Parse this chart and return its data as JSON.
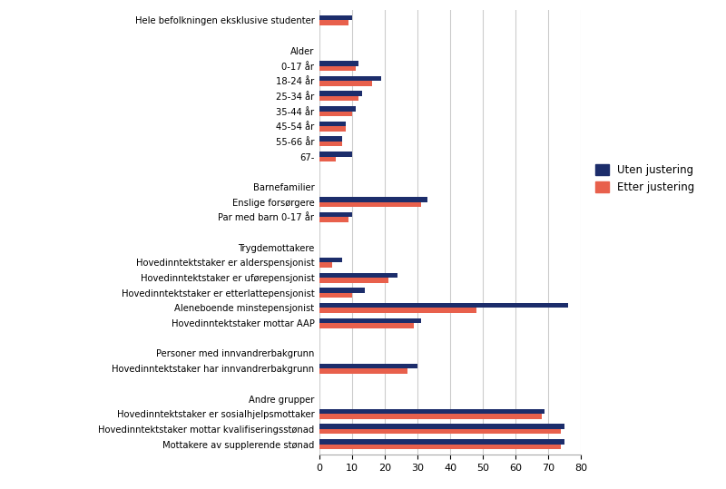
{
  "categories": [
    "Hele befolkningen eksklusive studenter",
    "",
    "Alder",
    "0-17 år",
    "18-24 år",
    "25-34 år",
    "35-44 år",
    "45-54 år",
    "55-66 år",
    "67-",
    "",
    "Barnefamilier",
    "Enslige forsørgere",
    "Par med barn 0-17 år",
    "",
    "Trygdemottakere",
    "Hovedinntektstaker er alderspensjonist",
    "Hovedinntektstaker er uførepensjonist",
    "Hovedinntektstaker er etterlattepensjonist",
    "Aleneboende minstepensjonist",
    "Hovedinntektstaker mottar AAP",
    "",
    "Personer med innvandrerbakgrunn",
    "Hovedinntektstaker har innvandrerbakgrunn",
    "",
    "Andre grupper",
    "Hovedinntektstaker er sosialhjelpsmottaker",
    "Hovedinntektstaker mottar kvalifiseringsstønad",
    "Mottakere av supplerende stønad"
  ],
  "uten_justering": [
    10,
    0,
    0,
    12,
    19,
    13,
    11,
    8,
    7,
    10,
    0,
    0,
    33,
    10,
    0,
    0,
    7,
    24,
    14,
    76,
    31,
    0,
    0,
    30,
    0,
    0,
    69,
    75,
    75
  ],
  "etter_justering": [
    9,
    0,
    0,
    11,
    16,
    12,
    10,
    8,
    7,
    5,
    0,
    0,
    31,
    9,
    0,
    0,
    4,
    21,
    10,
    48,
    29,
    0,
    0,
    27,
    0,
    0,
    68,
    74,
    74
  ],
  "no_bar_rows": [
    1,
    2,
    10,
    11,
    14,
    15,
    21,
    22,
    24,
    25
  ],
  "color_uten": "#1c2d6b",
  "color_etter": "#e8604c",
  "background_color": "#ffffff",
  "xlim": [
    0,
    80
  ],
  "xticks": [
    0,
    10,
    20,
    30,
    40,
    50,
    60,
    70,
    80
  ],
  "legend_labels": [
    "Uten justering",
    "Etter justering"
  ],
  "bar_height": 0.33,
  "grid_color": "#cccccc"
}
